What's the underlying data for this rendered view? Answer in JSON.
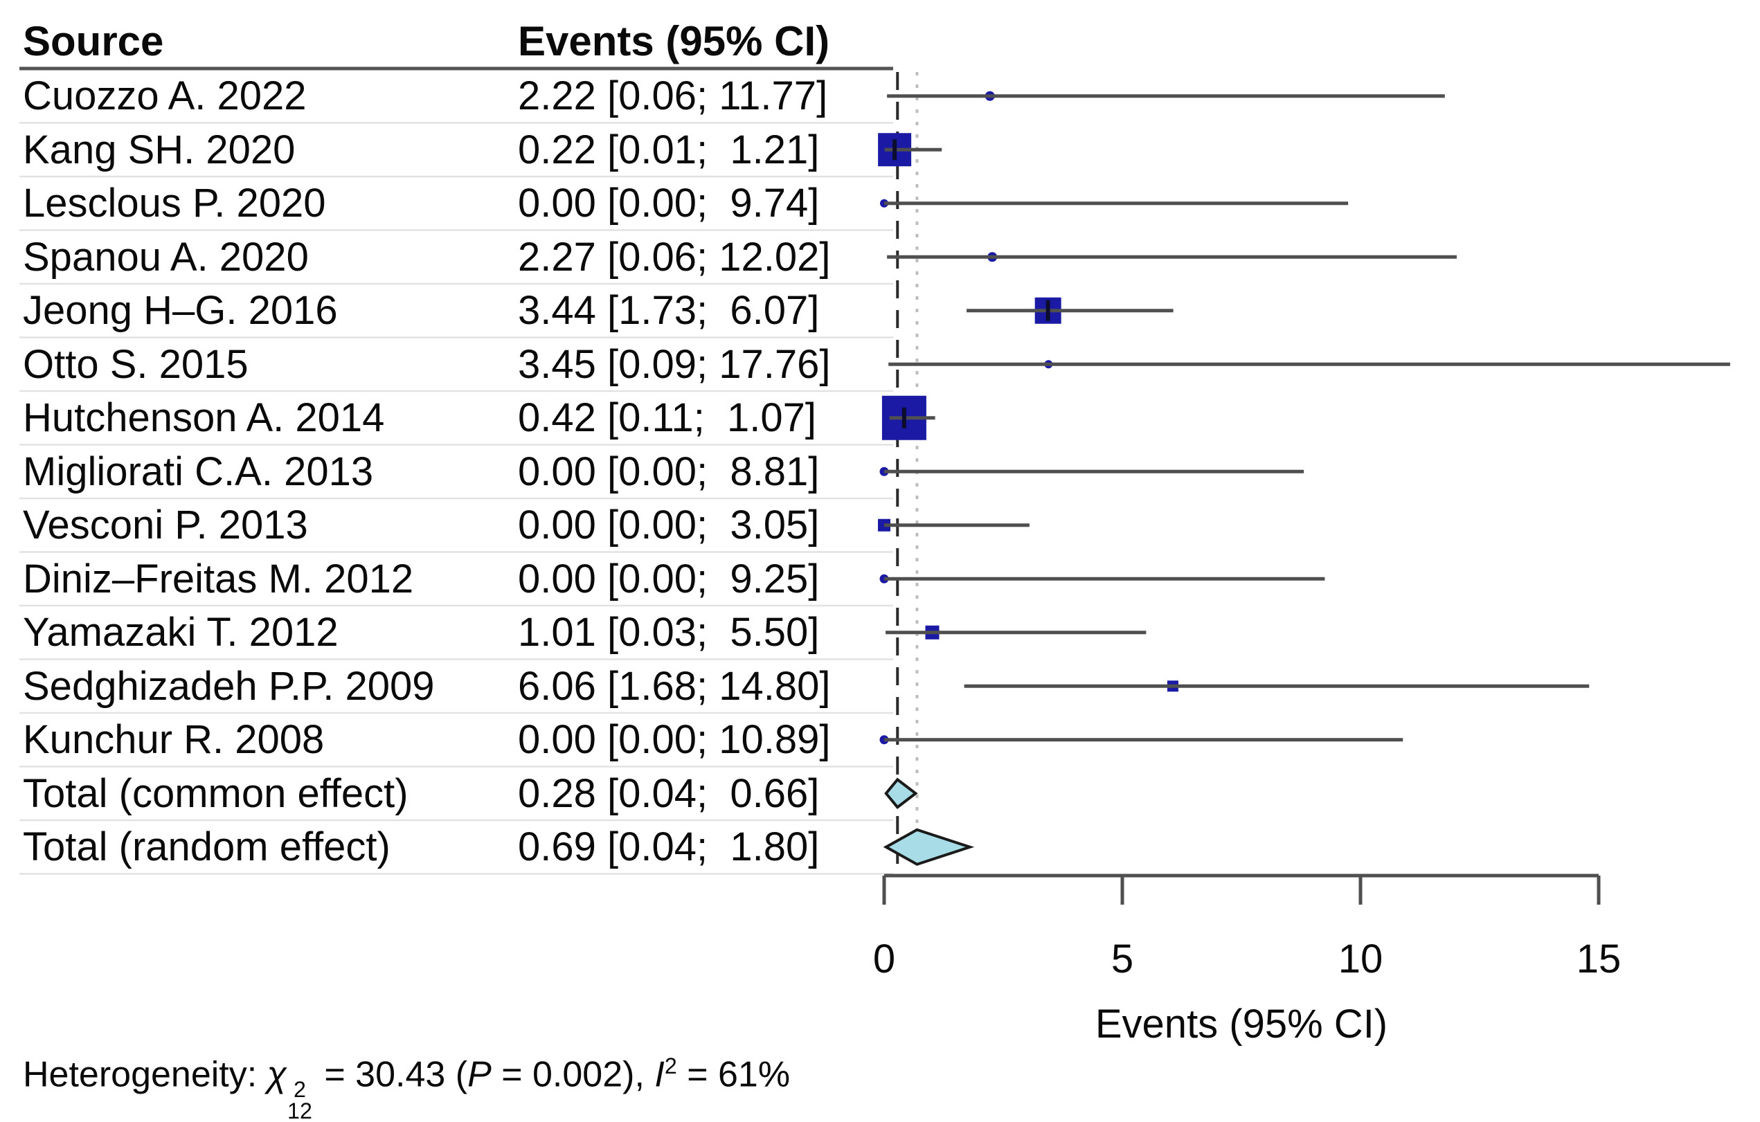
{
  "table": {
    "source_header": "Source",
    "events_header": "Events (95% CI)"
  },
  "chart_data": {
    "type": "forest",
    "xlabel": "Events (95% CI)",
    "x_ticks": [
      0,
      5,
      10,
      15
    ],
    "x_min": 0,
    "x_max": 15,
    "grid": false,
    "reference_lines": [
      {
        "x": 0.28,
        "style": "dashed",
        "color": "#2a2a2a"
      },
      {
        "x": 0.69,
        "style": "dotted",
        "color": "#bdbdbd"
      }
    ],
    "rows": [
      {
        "source": "Cuozzo A. 2022",
        "events": "2.22 [0.06; 11.77]",
        "est": 2.22,
        "lo": 0.06,
        "hi": 11.77,
        "kind": "study",
        "marker": {
          "shape": "circle",
          "size": 14
        }
      },
      {
        "source": "Kang SH. 2020",
        "events": "0.22 [0.01;  1.21]",
        "est": 0.22,
        "lo": 0.01,
        "hi": 1.21,
        "kind": "study",
        "marker": {
          "shape": "square",
          "size": 48
        }
      },
      {
        "source": "Lesclous P. 2020",
        "events": "0.00 [0.00;  9.74]",
        "est": 0.0,
        "lo": 0.0,
        "hi": 9.74,
        "kind": "study",
        "marker": {
          "shape": "circle",
          "size": 12
        }
      },
      {
        "source": "Spanou A. 2020",
        "events": "2.27 [0.06; 12.02]",
        "est": 2.27,
        "lo": 0.06,
        "hi": 12.02,
        "kind": "study",
        "marker": {
          "shape": "circle",
          "size": 14
        }
      },
      {
        "source": "Jeong H–G. 2016",
        "events": "3.44 [1.73;  6.07]",
        "est": 3.44,
        "lo": 1.73,
        "hi": 6.07,
        "kind": "study",
        "marker": {
          "shape": "square",
          "size": 38
        }
      },
      {
        "source": "Otto S. 2015",
        "events": "3.45 [0.09; 17.76]",
        "est": 3.45,
        "lo": 0.09,
        "hi": 17.76,
        "kind": "study",
        "marker": {
          "shape": "circle",
          "size": 12
        }
      },
      {
        "source": "Hutchenson A. 2014",
        "events": "0.42 [0.11;  1.07]",
        "est": 0.42,
        "lo": 0.11,
        "hi": 1.07,
        "kind": "study",
        "marker": {
          "shape": "square",
          "size": 64
        }
      },
      {
        "source": "Migliorati C.A. 2013",
        "events": "0.00 [0.00;  8.81]",
        "est": 0.0,
        "lo": 0.0,
        "hi": 8.81,
        "kind": "study",
        "marker": {
          "shape": "circle",
          "size": 13
        }
      },
      {
        "source": "Vesconi P. 2013",
        "events": "0.00 [0.00;  3.05]",
        "est": 0.0,
        "lo": 0.0,
        "hi": 3.05,
        "kind": "study",
        "marker": {
          "shape": "square",
          "size": 18
        }
      },
      {
        "source": "Diniz–Freitas M. 2012",
        "events": "0.00 [0.00;  9.25]",
        "est": 0.0,
        "lo": 0.0,
        "hi": 9.25,
        "kind": "study",
        "marker": {
          "shape": "circle",
          "size": 13
        }
      },
      {
        "source": "Yamazaki T. 2012",
        "events": "1.01 [0.03;  5.50]",
        "est": 1.01,
        "lo": 0.03,
        "hi": 5.5,
        "kind": "study",
        "marker": {
          "shape": "square",
          "size": 20
        }
      },
      {
        "source": "Sedghizadeh P.P. 2009",
        "events": "6.06 [1.68; 14.80]",
        "est": 6.06,
        "lo": 1.68,
        "hi": 14.8,
        "kind": "study",
        "marker": {
          "shape": "square",
          "size": 16
        }
      },
      {
        "source": "Kunchur R. 2008",
        "events": "0.00 [0.00; 10.89]",
        "est": 0.0,
        "lo": 0.0,
        "hi": 10.89,
        "kind": "study",
        "marker": {
          "shape": "circle",
          "size": 13
        }
      },
      {
        "source": "Total (common effect)",
        "events": "0.28 [0.04;  0.66]",
        "est": 0.28,
        "lo": 0.04,
        "hi": 0.66,
        "kind": "total"
      },
      {
        "source": "Total (random effect)",
        "events": "0.69 [0.04;  1.80]",
        "est": 0.69,
        "lo": 0.04,
        "hi": 1.8,
        "kind": "total"
      }
    ],
    "colors": {
      "marker": "#1a1aa4",
      "estimate_tick": "#0c0c2e",
      "diamond_fill": "#a8dde8",
      "diamond_stroke": "#1a1a1a",
      "ci_line": "#4f4f4f",
      "separator": "#e2e2e2",
      "header_rule": "#555555",
      "axis": "#4f4f4f"
    }
  },
  "heterogeneity": {
    "prefix": "Heterogeneity: ",
    "chi": "χ",
    "chi_sup": "2",
    "chi_sub": "12",
    "seg1": " = 30.43 (",
    "p_label": "P",
    "seg2": " = 0.002), ",
    "i_label": "I",
    "i_sup": "2",
    "seg3": " = 61%"
  }
}
